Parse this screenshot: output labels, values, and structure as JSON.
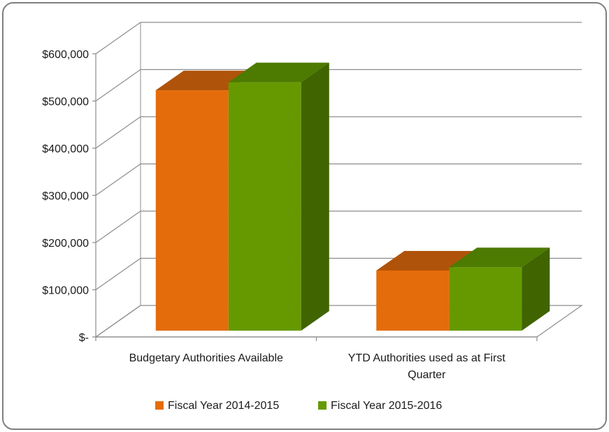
{
  "chart_data": {
    "type": "bar",
    "categories": [
      [
        "Budgetary Authorities Available"
      ],
      [
        "YTD Authorities used as at First",
        "Quarter"
      ]
    ],
    "series": [
      {
        "name": "Fiscal Year 2014-2015",
        "values": [
          508000,
          126000
        ],
        "color": "#e46c0a",
        "top_color": "#b0530a"
      },
      {
        "name": "Fiscal Year 2015-2016",
        "values": [
          525000,
          133000
        ],
        "color": "#669900",
        "side_color": "#3f6400",
        "top_color": "#4d7a00"
      }
    ],
    "ylim": [
      0,
      600000
    ],
    "yticks": [
      0,
      100000,
      200000,
      300000,
      400000,
      500000,
      600000
    ],
    "ytick_labels": [
      "$-",
      "$100,000",
      "$200,000",
      "$300,000",
      "$400,000",
      "$500,000",
      "$600,000"
    ],
    "grid": true,
    "legend_position": "bottom",
    "style": "3d-clustered"
  }
}
